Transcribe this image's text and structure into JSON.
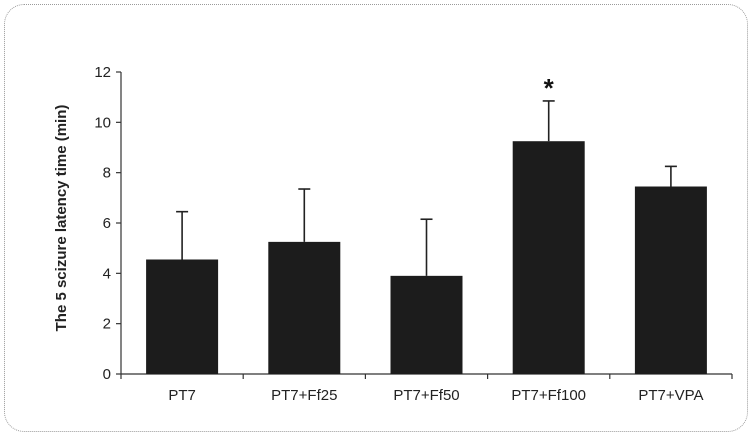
{
  "chart_data": {
    "type": "bar",
    "title": "",
    "xlabel": "",
    "ylabel": "The 5 scizure latency time (min)",
    "ylim": [
      0,
      12
    ],
    "yticks": [
      0,
      2,
      4,
      6,
      8,
      10,
      12
    ],
    "categories": [
      "PT7",
      "PT7+Ff25",
      "PT7+Ff50",
      "PT7+Ff100",
      "PT7+VPA"
    ],
    "values": [
      4.55,
      5.25,
      3.9,
      9.25,
      7.45
    ],
    "errors": [
      1.9,
      2.1,
      2.25,
      1.6,
      0.8
    ],
    "annotations": [
      {
        "category": "PT7+Ff100",
        "text": "*"
      }
    ],
    "bar_color": "#1c1c1c",
    "grid": false,
    "legend": "none"
  }
}
